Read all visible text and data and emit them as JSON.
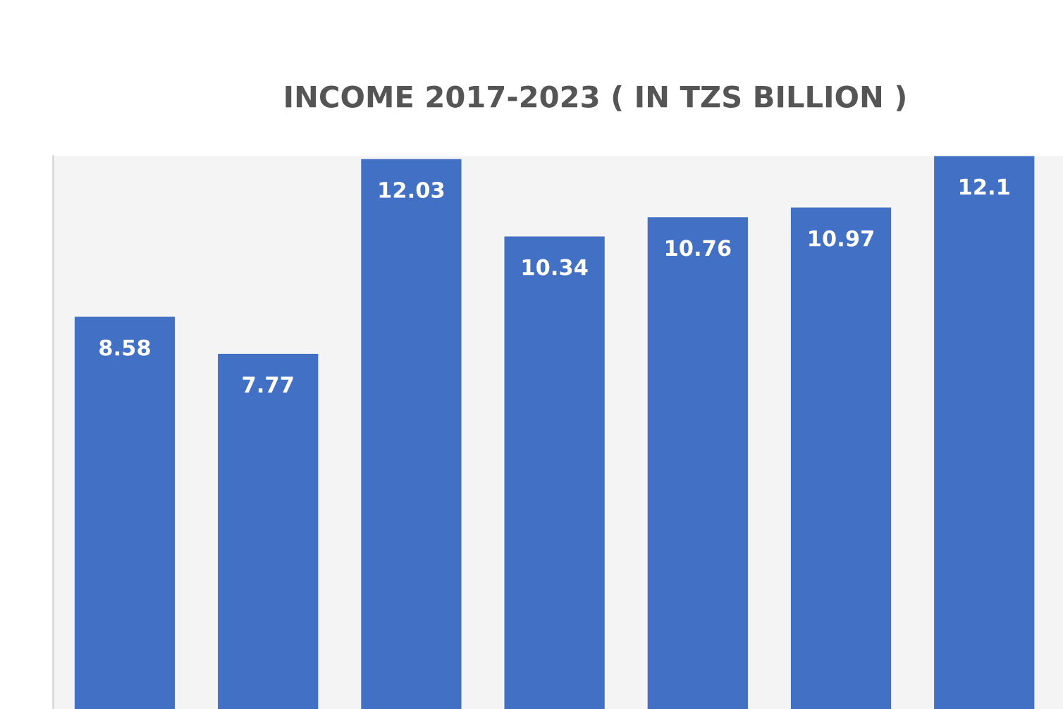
{
  "chart_data": {
    "type": "bar",
    "title": "INCOME 2017-2023 ( IN TZS BILLION )",
    "categories": [
      null,
      null,
      null,
      null,
      null,
      null,
      null
    ],
    "values": [
      8.58,
      7.77,
      12.03,
      10.34,
      10.76,
      10.97,
      12.1
    ],
    "value_labels": [
      "8.58",
      "7.77",
      "12.03",
      "10.34",
      "10.76",
      "10.97",
      "12.1"
    ],
    "color": "#4170c4",
    "grid": false
  }
}
